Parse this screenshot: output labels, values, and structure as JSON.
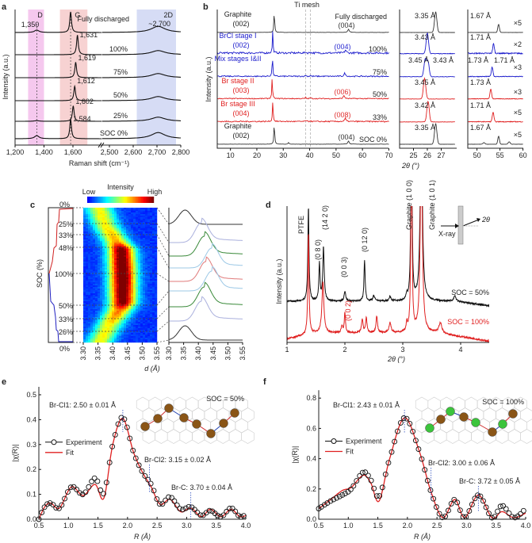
{
  "chart_data": [
    {
      "panel": "a",
      "type": "line",
      "xlabel": "Raman shift (cm⁻¹)",
      "ylabel": "Intensity (a.u.)",
      "xticks": [
        "1,200",
        "1,400",
        "1,600",
        "2,500",
        "2,600",
        "2,700",
        "2,800"
      ],
      "xtick_values": [
        1200,
        1400,
        1600,
        2500,
        2600,
        2700,
        2800
      ],
      "bands": [
        {
          "label": "D",
          "range": [
            1290,
            1400
          ],
          "color": "#f5c8ee"
        },
        {
          "label": "G",
          "range": [
            1510,
            1700
          ],
          "color": "#f7d2d2"
        },
        {
          "label": "2D",
          "range": [
            2615,
            2780
          ],
          "color": "#d6dcf5"
        }
      ],
      "band_annotations": {
        "d_peak": "1,350",
        "twod_peak": "~2,700"
      },
      "series": [
        {
          "name": "Fully discharged",
          "g_peak": 1584,
          "g_label": "",
          "d_amp": 0.12,
          "g_amp": 1.0,
          "twod_amp": 0.3
        },
        {
          "name": "100%",
          "g_peak": 1631,
          "g_label": "1,631",
          "d_amp": 0.0,
          "g_amp": 0.95,
          "twod_amp": 0.2
        },
        {
          "name": "75%",
          "g_peak": 1619,
          "g_label": "1,619",
          "d_amp": 0.0,
          "g_amp": 0.75,
          "twod_amp": 0.2
        },
        {
          "name": "50%",
          "g_peak": 1612,
          "g_label": "1,612",
          "d_amp": 0.0,
          "g_amp": 0.7,
          "twod_amp": 0.2
        },
        {
          "name": "25%",
          "g_peak": 1602,
          "g_label": "1,602",
          "d_amp": 0.03,
          "g_amp": 0.75,
          "twod_amp": 0.2
        },
        {
          "name": "SOC 0%",
          "g_peak": 1584,
          "g_label": "1,584",
          "d_amp": 0.15,
          "g_amp": 0.95,
          "twod_amp": 0.3
        }
      ]
    },
    {
      "panel": "b",
      "type": "line",
      "xlabel": "2θ (°)",
      "ylabel": "Intensity (a.u.)",
      "annotation": "Ti mesh",
      "ti_mesh_lines": [
        38.5,
        40.3
      ],
      "xticks_main": [
        10,
        20,
        30,
        40,
        50,
        60,
        70
      ],
      "xticks_zoom1": [
        25,
        26,
        27
      ],
      "xticks_zoom2": [
        50,
        55,
        60
      ],
      "series": [
        {
          "name": "Graphite",
          "index1": "(002)",
          "index2": "(004)",
          "index2_color": "#333333",
          "state": "Fully discharged",
          "color": "#333333",
          "p1": 26.6,
          "p2": 54.7,
          "d1": "3.35 Å",
          "d1b": "",
          "d2": "1.67 Å",
          "d2b": "",
          "mult": "×5",
          "noise": 0.01
        },
        {
          "name": "BrCl stage I",
          "index1": "(002)",
          "index2": "(004)",
          "index2_color": "#2a2ad0",
          "state": "100%",
          "color": "#1c1ccc",
          "p1": 26.0,
          "p2": 53.6,
          "d1": "3.43 Å",
          "d1b": "",
          "d2": "1.71 Å",
          "d2b": "",
          "mult": "×2",
          "noise": 0.08
        },
        {
          "name": "Mix stages I&II",
          "index1": "",
          "index2": "",
          "index2_color": "#2a2ad0",
          "state": "75%",
          "color": "#1c1ccc",
          "p1": 25.9,
          "p2": 53.3,
          "d1": "3.45 Å",
          "d1b": "3.43 Å",
          "d2": "1.73 Å",
          "d2b": "1.71 Å",
          "mult": "×3",
          "noise": 0.05
        },
        {
          "name": "Br stage II",
          "index1": "(003)",
          "index2": "(006)",
          "index2_color": "#e03030",
          "state": "50%",
          "color": "#e02020",
          "p1": 25.8,
          "p2": 53.0,
          "d1": "3.45 Å",
          "d1b": "",
          "d2": "1.73 Å",
          "d2b": "",
          "mult": "×3",
          "noise": 0.04
        },
        {
          "name": "Br stage III",
          "index1": "(004)",
          "index2": "(008)",
          "index2_color": "#e03030",
          "state": "33%",
          "color": "#e02020",
          "p1": 26.05,
          "p2": 53.5,
          "d1": "3.42 Å",
          "d1b": "",
          "d2": "1.71 Å",
          "d2b": "",
          "mult": "×5",
          "noise": 0.05
        },
        {
          "name": "Graphite",
          "index1": "(002)",
          "index2": "(004)",
          "index2_color": "#333333",
          "state": "SOC 0%",
          "color": "#333333",
          "p1": 26.6,
          "p2": 54.7,
          "d1": "3.35 Å",
          "d1b": "",
          "d2": "1.67 Å",
          "d2b": "",
          "mult": "×5",
          "noise": 0.01
        }
      ]
    },
    {
      "panel": "c",
      "type": "heatmap",
      "xlabel": "d (Å)",
      "ylabel": "SOC (%)",
      "colorbar": {
        "title": "Intensity",
        "low": "Low",
        "high": "High"
      },
      "xticks": [
        "3.30",
        "3.35",
        "3.40",
        "3.45",
        "3.50",
        "3.55"
      ],
      "xrange": [
        3.3,
        3.55
      ],
      "soc_markers": [
        "0%",
        "25%",
        "33%",
        "48%",
        "100%",
        "50%",
        "33%",
        "26%",
        "0%"
      ],
      "profile": [
        {
          "t": 0.0,
          "d": 3.35,
          "i": 0.45
        },
        {
          "t": 0.12,
          "d": 3.37,
          "i": 0.45
        },
        {
          "t": 0.25,
          "d": 3.41,
          "i": 0.55
        },
        {
          "t": 0.3,
          "d": 3.425,
          "i": 0.85
        },
        {
          "t": 0.5,
          "d": 3.43,
          "i": 0.9
        },
        {
          "t": 0.7,
          "d": 3.43,
          "i": 0.85
        },
        {
          "t": 0.75,
          "d": 3.42,
          "i": 0.6
        },
        {
          "t": 0.88,
          "d": 3.38,
          "i": 0.45
        },
        {
          "t": 1.0,
          "d": 3.35,
          "i": 0.45
        }
      ],
      "stack": [
        {
          "d": 3.355,
          "color": "#333333"
        },
        {
          "d": 3.41,
          "color": "#aab0dd"
        },
        {
          "d": 3.42,
          "color": "#3a8a3a"
        },
        {
          "d": 3.445,
          "color": "#9cc8e6"
        },
        {
          "d": 3.425,
          "color": "#e07a7a"
        },
        {
          "d": 3.445,
          "color": "#9cc8e6"
        },
        {
          "d": 3.42,
          "color": "#3a8a3a"
        },
        {
          "d": 3.41,
          "color": "#aab0dd"
        },
        {
          "d": 3.355,
          "color": "#333333"
        }
      ]
    },
    {
      "panel": "d",
      "type": "line",
      "xlabel": "2θ (°)",
      "ylabel": "Intensity (a.u.)",
      "xticks": [
        1,
        2,
        3,
        4
      ],
      "xrange": [
        1,
        4.5
      ],
      "inset": {
        "beam": "X-ray",
        "angle": "2θ"
      },
      "peak_labels": [
        {
          "text": "PTFE",
          "x": 1.37
        },
        {
          "text": "(0 8 0)",
          "x": 1.56
        },
        {
          "text": "(14 2 0)",
          "x": 1.63
        },
        {
          "text": "(0 0 3)",
          "x": 2.0
        },
        {
          "text": "(0 12 0)",
          "x": 2.34
        },
        {
          "text": "Graphite (1 0 0)",
          "x": 3.15
        },
        {
          "text": "Graphite (1 0 1)",
          "x": 3.32
        }
      ],
      "red_peak_label": {
        "text": "(0 0 2)",
        "x": 1.99
      },
      "series": [
        {
          "name": "SOC = 50%",
          "color": "#111111",
          "peaks": [
            [
              1.37,
              1.4,
              0.012
            ],
            [
              1.56,
              0.55,
              0.012
            ],
            [
              1.63,
              0.8,
              0.015
            ],
            [
              2.0,
              0.15,
              0.015
            ],
            [
              2.34,
              0.6,
              0.012
            ],
            [
              2.5,
              0.08,
              0.02
            ],
            [
              2.78,
              0.07,
              0.015
            ],
            [
              3.07,
              0.08,
              0.012
            ],
            [
              3.15,
              3,
              0.012
            ],
            [
              3.32,
              3,
              0.02
            ],
            [
              3.9,
              0.08,
              0.02
            ]
          ]
        },
        {
          "name": "SOC = 100%",
          "color": "#e02020",
          "peaks": [
            [
              1.37,
              1.5,
              0.012
            ],
            [
              1.62,
              0.75,
              0.02
            ],
            [
              1.95,
              0.1,
              0.015
            ],
            [
              2.0,
              0.3,
              0.012
            ],
            [
              2.3,
              0.2,
              0.015
            ],
            [
              2.37,
              0.22,
              0.015
            ],
            [
              2.55,
              0.25,
              0.015
            ],
            [
              2.78,
              0.15,
              0.02
            ],
            [
              3.07,
              0.12,
              0.012
            ],
            [
              3.15,
              3,
              0.012
            ],
            [
              3.32,
              3,
              0.02
            ],
            [
              3.65,
              0.15,
              0.03
            ]
          ]
        }
      ]
    },
    {
      "panel": "e",
      "type": "line",
      "title": "SOC = 50%",
      "xlabel": "R (Å)",
      "ylabel": "|χ(R)|",
      "xrange": [
        0.5,
        4.0
      ],
      "ylim": [
        0,
        0.5
      ],
      "xticks": [
        "0.5",
        "1.0",
        "1.5",
        "2.0",
        "2.5",
        "3.0",
        "3.5",
        "4.0"
      ],
      "yticks": [
        "0.0",
        "0.1",
        "0.2",
        "0.3",
        "0.4",
        "0.5"
      ],
      "legend": [
        "Experiment",
        "Fit"
      ],
      "annotations": [
        {
          "text": "Br-Cl1: 2.50 ± 0.01 Å",
          "R": 1.92
        },
        {
          "text": "Br-Cl2: 3.15 ± 0.02 Å",
          "R": 2.37
        },
        {
          "text": "Br-C: 3.70 ± 0.04 Å",
          "R": 3.07
        }
      ],
      "experiment": [
        [
          0.5,
          0.0
        ],
        [
          0.6,
          0.05
        ],
        [
          0.7,
          0.065
        ],
        [
          0.85,
          0.045
        ],
        [
          1.05,
          0.13
        ],
        [
          1.25,
          0.1
        ],
        [
          1.45,
          0.165
        ],
        [
          1.6,
          0.105
        ],
        [
          1.75,
          0.3
        ],
        [
          1.92,
          0.41
        ],
        [
          2.1,
          0.27
        ],
        [
          2.25,
          0.19
        ],
        [
          2.4,
          0.14
        ],
        [
          2.55,
          0.06
        ],
        [
          2.72,
          0.09
        ],
        [
          2.9,
          0.04
        ],
        [
          3.07,
          0.05
        ],
        [
          3.25,
          0.015
        ],
        [
          3.4,
          0.035
        ],
        [
          3.58,
          0.01
        ],
        [
          3.75,
          0.045
        ],
        [
          3.9,
          0.01
        ],
        [
          4.0,
          0.02
        ]
      ],
      "fit": [
        [
          0.5,
          0.0
        ],
        [
          0.6,
          0.05
        ],
        [
          0.7,
          0.065
        ],
        [
          0.85,
          0.045
        ],
        [
          1.05,
          0.13
        ],
        [
          1.25,
          0.095
        ],
        [
          1.45,
          0.14
        ],
        [
          1.6,
          0.085
        ],
        [
          1.75,
          0.3
        ],
        [
          1.92,
          0.405
        ],
        [
          2.1,
          0.27
        ],
        [
          2.25,
          0.19
        ],
        [
          2.4,
          0.13
        ],
        [
          2.55,
          0.06
        ],
        [
          2.72,
          0.08
        ],
        [
          2.9,
          0.03
        ],
        [
          3.07,
          0.045
        ],
        [
          3.25,
          0.01
        ],
        [
          3.4,
          0.04
        ],
        [
          3.58,
          0.01
        ],
        [
          3.75,
          0.04
        ],
        [
          3.9,
          0.01
        ],
        [
          4.0,
          0.015
        ]
      ]
    },
    {
      "panel": "f",
      "type": "line",
      "title": "SOC = 100%",
      "xlabel": "R (Å)",
      "ylabel": "|χ(R)|",
      "xrange": [
        0.5,
        4.0
      ],
      "ylim": [
        0,
        0.8
      ],
      "xticks": [
        "0.5",
        "1.0",
        "1.5",
        "2.0",
        "2.5",
        "3.0",
        "3.5",
        "4.0"
      ],
      "yticks": [
        "0.0",
        "0.2",
        "0.4",
        "0.6",
        "0.8"
      ],
      "legend": [
        "Experiment",
        "Fit"
      ],
      "annotations": [
        {
          "text": "Br-Cl1: 2.43 ± 0.01 Å",
          "R": 1.95
        },
        {
          "text": "Br-Cl2: 3.00 ± 0.06 Å",
          "R": 2.4
        },
        {
          "text": "Br-C: 3.72 ± 0.05 Å",
          "R": 3.2
        }
      ],
      "experiment": [
        [
          0.5,
          0.07
        ],
        [
          0.7,
          0.12
        ],
        [
          0.9,
          0.16
        ],
        [
          1.05,
          0.2
        ],
        [
          1.25,
          0.31
        ],
        [
          1.38,
          0.26
        ],
        [
          1.52,
          0.15
        ],
        [
          1.7,
          0.4
        ],
        [
          1.95,
          0.67
        ],
        [
          2.2,
          0.45
        ],
        [
          2.4,
          0.18
        ],
        [
          2.6,
          0.01
        ],
        [
          2.8,
          0.13
        ],
        [
          2.97,
          0.01
        ],
        [
          3.2,
          0.16
        ],
        [
          3.43,
          0.01
        ],
        [
          3.6,
          0.09
        ],
        [
          3.8,
          0.01
        ],
        [
          4.0,
          0.07
        ]
      ],
      "fit": [
        [
          0.5,
          0.07
        ],
        [
          0.7,
          0.13
        ],
        [
          0.9,
          0.19
        ],
        [
          1.05,
          0.21
        ],
        [
          1.25,
          0.29
        ],
        [
          1.38,
          0.24
        ],
        [
          1.52,
          0.12
        ],
        [
          1.7,
          0.4
        ],
        [
          1.95,
          0.67
        ],
        [
          2.2,
          0.45
        ],
        [
          2.4,
          0.18
        ],
        [
          2.6,
          0.01
        ],
        [
          2.8,
          0.13
        ],
        [
          2.97,
          0.01
        ],
        [
          3.2,
          0.16
        ],
        [
          3.43,
          0.01
        ],
        [
          3.6,
          0.05
        ],
        [
          3.8,
          0.01
        ],
        [
          4.0,
          0.04
        ]
      ]
    }
  ],
  "panel_labels": [
    "a",
    "b",
    "c",
    "d",
    "e",
    "f"
  ],
  "colors": {
    "br": "#8a5516",
    "cl": "#3cc43c",
    "bond_red": "#d03030",
    "bond_blue": "#2040b0"
  }
}
